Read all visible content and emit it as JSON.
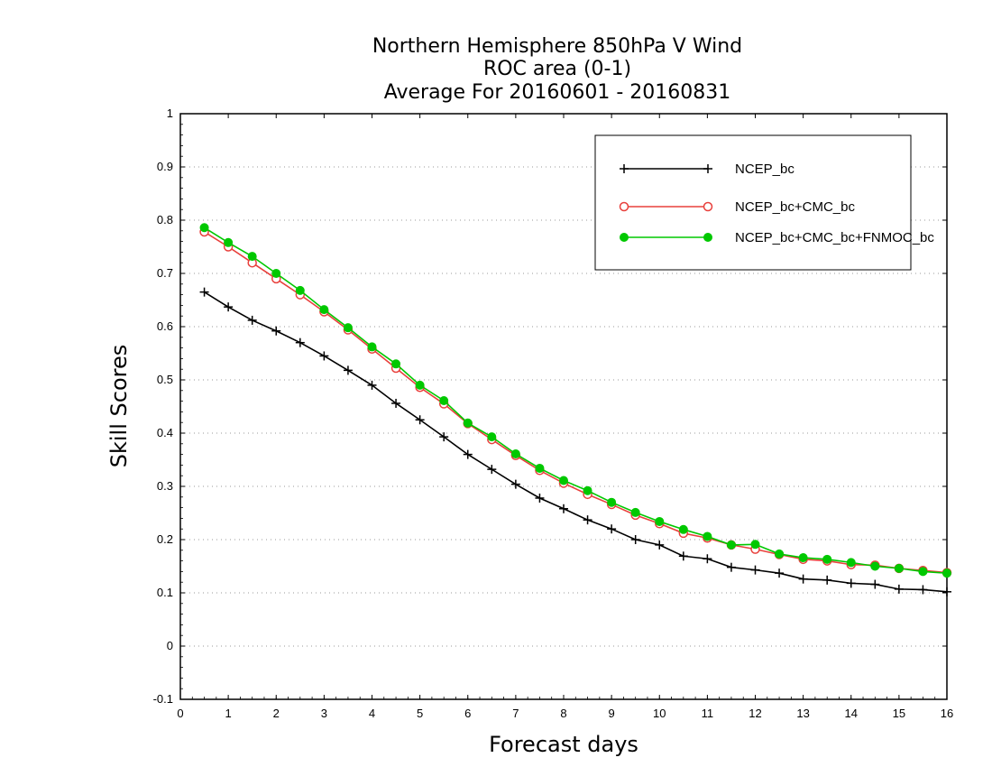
{
  "chart_data": {
    "type": "line",
    "title": [
      "Northern Hemisphere 850hPa V Wind",
      "ROC area (0-1)",
      "Average For 20160601 - 20160831"
    ],
    "xlabel": "Forecast days",
    "ylabel": "Skill Scores",
    "xlim": [
      0,
      16
    ],
    "ylim": [
      -0.1,
      1
    ],
    "xticks": [
      "0",
      "1",
      "2",
      "3",
      "4",
      "5",
      "6",
      "7",
      "8",
      "9",
      "10",
      "11",
      "12",
      "13",
      "14",
      "15",
      "16"
    ],
    "yticks": [
      "-0.1",
      "0",
      "0.1",
      "0.2",
      "0.3",
      "0.4",
      "0.5",
      "0.6",
      "0.7",
      "0.8",
      "0.9",
      "1"
    ],
    "ytick_values": [
      -0.1,
      0,
      0.1,
      0.2,
      0.3,
      0.4,
      0.5,
      0.6,
      0.7,
      0.8,
      0.9,
      1.0
    ],
    "grid": "horizontal dotted",
    "legend_position": "top-right",
    "x": [
      0.5,
      1,
      1.5,
      2,
      2.5,
      3,
      3.5,
      4,
      4.5,
      5,
      5.5,
      6,
      6.5,
      7,
      7.5,
      8,
      8.5,
      9,
      9.5,
      10,
      10.5,
      11,
      11.5,
      12,
      12.5,
      13,
      13.5,
      14,
      14.5,
      15,
      15.5,
      16
    ],
    "series": [
      {
        "name": "NCEP_bc",
        "color": "#000000",
        "marker": "plus",
        "values": [
          0.665,
          0.637,
          0.612,
          0.592,
          0.57,
          0.545,
          0.518,
          0.49,
          0.456,
          0.425,
          0.393,
          0.36,
          0.332,
          0.304,
          0.278,
          0.258,
          0.237,
          0.22,
          0.2,
          0.19,
          0.169,
          0.164,
          0.148,
          0.143,
          0.137,
          0.126,
          0.124,
          0.118,
          0.116,
          0.107,
          0.106,
          0.102
        ]
      },
      {
        "name": "NCEP_bc+CMC_bc",
        "color": "#e8403c",
        "marker": "open-circle",
        "values": [
          0.778,
          0.75,
          0.72,
          0.69,
          0.66,
          0.628,
          0.594,
          0.558,
          0.522,
          0.486,
          0.455,
          0.418,
          0.388,
          0.358,
          0.33,
          0.306,
          0.285,
          0.266,
          0.246,
          0.23,
          0.212,
          0.203,
          0.19,
          0.182,
          0.172,
          0.163,
          0.16,
          0.153,
          0.152,
          0.146,
          0.142,
          0.138
        ]
      },
      {
        "name": "NCEP_bc+CMC_bc+FNMOC_bc",
        "color": "#00c800",
        "marker": "filled-circle",
        "values": [
          0.786,
          0.758,
          0.732,
          0.7,
          0.668,
          0.632,
          0.598,
          0.562,
          0.53,
          0.49,
          0.461,
          0.419,
          0.393,
          0.361,
          0.334,
          0.311,
          0.292,
          0.27,
          0.251,
          0.234,
          0.219,
          0.206,
          0.19,
          0.191,
          0.173,
          0.166,
          0.163,
          0.157,
          0.15,
          0.146,
          0.14,
          0.137
        ]
      }
    ]
  }
}
